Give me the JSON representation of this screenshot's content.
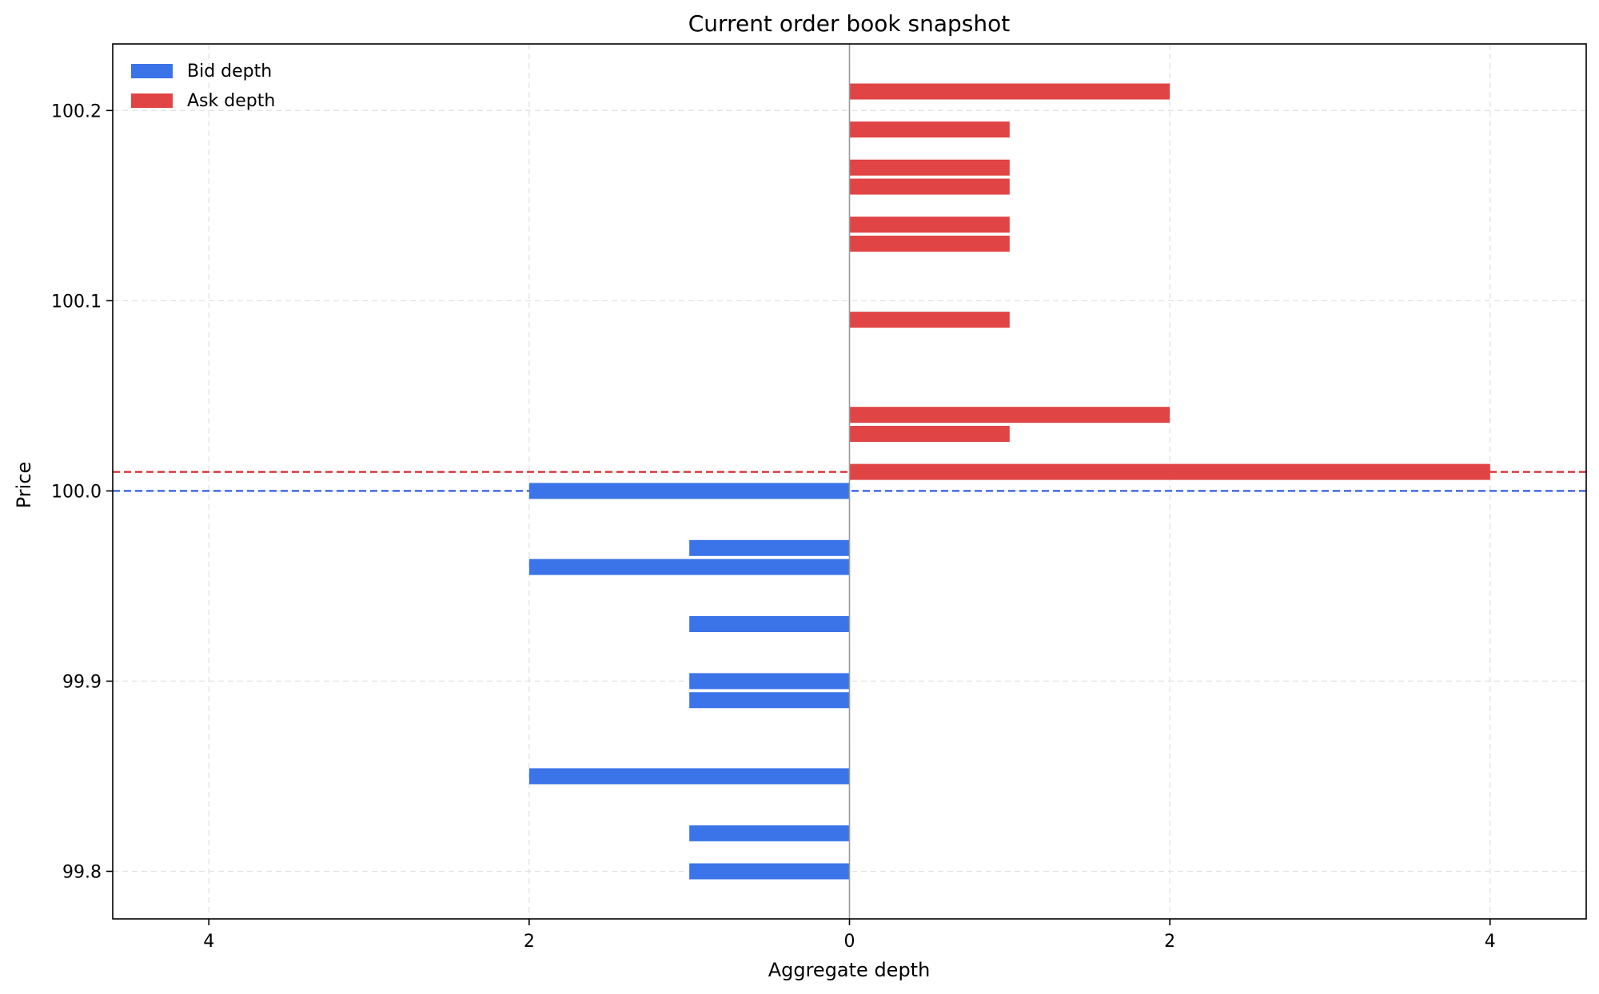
{
  "chart_data": {
    "type": "bar",
    "orientation": "horizontal",
    "title": "Current order book snapshot",
    "xlabel": "Aggregate depth",
    "ylabel": "Price",
    "x_tick_values": [
      -4,
      -2,
      0,
      2,
      4
    ],
    "x_tick_labels": [
      "4",
      "2",
      "0",
      "2",
      "4"
    ],
    "y_tick_values": [
      99.8,
      99.9,
      100.0,
      100.1,
      100.2
    ],
    "y_tick_labels": [
      "99.8",
      "99.9",
      "100.0",
      "100.1",
      "100.2"
    ],
    "xlim": [
      -4.6,
      4.6
    ],
    "ylim": [
      99.775,
      100.235
    ],
    "grid": true,
    "legend_position": "upper-left",
    "series": [
      {
        "name": "Bid depth",
        "side": "bid",
        "color": "#3b73e8",
        "prices": [
          100.0,
          99.97,
          99.96,
          99.93,
          99.9,
          99.89,
          99.85,
          99.82,
          99.8
        ],
        "depths": [
          2,
          1,
          2,
          1,
          1,
          1,
          2,
          1,
          1
        ]
      },
      {
        "name": "Ask depth",
        "side": "ask",
        "color": "#e04444",
        "prices": [
          100.01,
          100.03,
          100.04,
          100.09,
          100.13,
          100.14,
          100.16,
          100.17,
          100.19,
          100.21
        ],
        "depths": [
          4,
          1,
          2,
          1,
          1,
          1,
          1,
          1,
          1,
          2
        ]
      }
    ],
    "reference_lines": [
      {
        "side": "best-bid",
        "price": 100.0,
        "color": "#2d5be3"
      },
      {
        "side": "best-ask",
        "price": 100.01,
        "color": "#d62728"
      }
    ]
  }
}
